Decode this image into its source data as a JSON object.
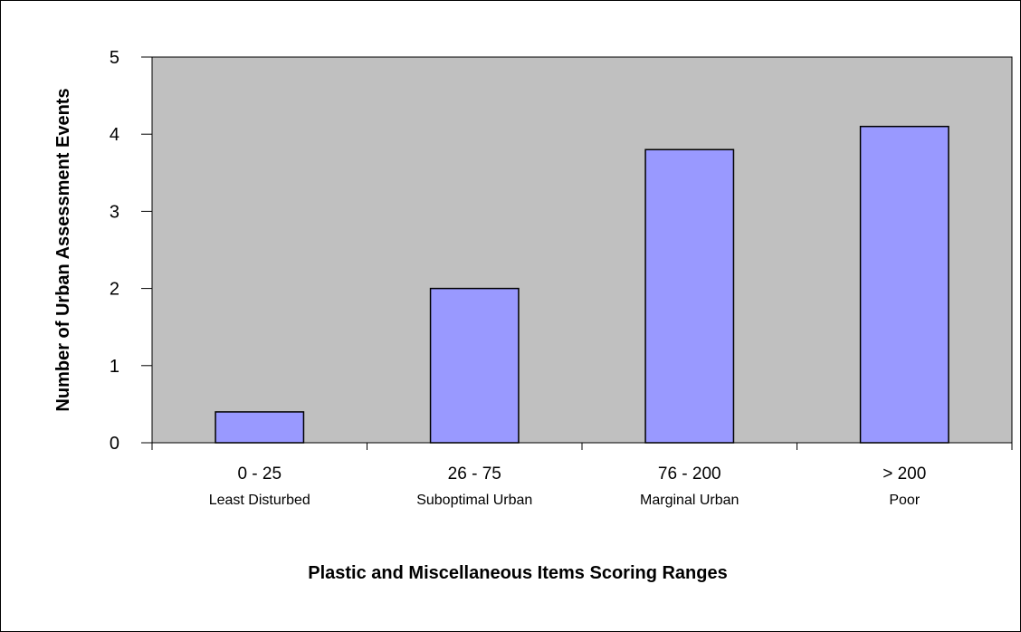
{
  "chart_data": {
    "type": "bar",
    "categories": [
      "0 - 25",
      "26 - 75",
      "76 - 200",
      "> 200"
    ],
    "category_sublabels": [
      "Least Disturbed",
      "Suboptimal Urban",
      "Marginal Urban",
      "Poor"
    ],
    "values": [
      0.4,
      2.0,
      3.8,
      4.1
    ],
    "xlabel": "Plastic and Miscellaneous Items Scoring Ranges",
    "ylabel": "Number of Urban Assessment Events",
    "ylim": [
      0,
      5
    ],
    "yticks": [
      "0",
      "1",
      "2",
      "3",
      "4",
      "5"
    ],
    "grid": false,
    "colors": {
      "bar_fill": "#9999ff",
      "bar_stroke": "#000000",
      "plot_background": "#c0c0c0",
      "axis": "#000000"
    }
  }
}
